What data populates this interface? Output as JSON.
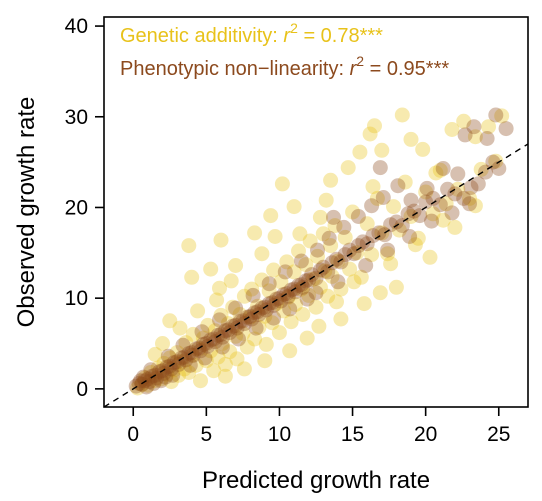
{
  "chart_data": {
    "type": "scatter",
    "xlabel": "Predicted growth rate",
    "ylabel": "Observed growth rate",
    "xlim": [
      -2,
      27
    ],
    "ylim": [
      -2,
      41
    ],
    "xticks": [
      0,
      5,
      10,
      15,
      20,
      25
    ],
    "yticks": [
      0,
      10,
      20,
      30,
      40
    ],
    "box": true,
    "reference_line": {
      "style": "dashed",
      "slope": 1,
      "intercept": 0
    },
    "legend_position": "top-left",
    "series": [
      {
        "name": "Genetic additivity",
        "legend_prefix": "Genetic additivity: ",
        "legend_stat": "r",
        "legend_exp": "2",
        "legend_value": " = 0.78***",
        "color": "#E8C21A",
        "opacity": 0.35,
        "points": [
          [
            0.3,
            0.1
          ],
          [
            0.6,
            0.5
          ],
          [
            0.8,
            1.2
          ],
          [
            1.0,
            0.4
          ],
          [
            1.2,
            1.8
          ],
          [
            1.5,
            0.9
          ],
          [
            1.7,
            2.3
          ],
          [
            1.9,
            1.1
          ],
          [
            2.1,
            2.8
          ],
          [
            2.3,
            1.6
          ],
          [
            2.5,
            3.4
          ],
          [
            2.6,
            0.8
          ],
          [
            2.8,
            2.1
          ],
          [
            3.0,
            4.0
          ],
          [
            3.1,
            1.5
          ],
          [
            3.3,
            3.0
          ],
          [
            3.5,
            2.2
          ],
          [
            3.6,
            5.1
          ],
          [
            3.8,
            1.8
          ],
          [
            4.0,
            3.7
          ],
          [
            4.1,
            6.0
          ],
          [
            4.3,
            2.6
          ],
          [
            4.5,
            4.4
          ],
          [
            4.6,
            0.9
          ],
          [
            4.8,
            5.6
          ],
          [
            5.0,
            3.1
          ],
          [
            5.1,
            7.0
          ],
          [
            5.3,
            4.2
          ],
          [
            5.5,
            2.0
          ],
          [
            5.6,
            6.4
          ],
          [
            5.8,
            3.5
          ],
          [
            6.0,
            8.1
          ],
          [
            6.1,
            5.0
          ],
          [
            6.3,
            2.7
          ],
          [
            6.5,
            7.2
          ],
          [
            6.6,
            4.1
          ],
          [
            6.8,
            9.0
          ],
          [
            7.0,
            5.8
          ],
          [
            7.1,
            3.3
          ],
          [
            7.3,
            8.2
          ],
          [
            7.5,
            6.1
          ],
          [
            7.6,
            10.2
          ],
          [
            7.8,
            4.6
          ],
          [
            8.0,
            7.9
          ],
          [
            8.1,
            11.0
          ],
          [
            8.3,
            5.5
          ],
          [
            8.5,
            9.1
          ],
          [
            8.6,
            6.8
          ],
          [
            8.8,
            12.0
          ],
          [
            9.0,
            8.0
          ],
          [
            9.1,
            4.9
          ],
          [
            9.3,
            10.8
          ],
          [
            9.5,
            7.3
          ],
          [
            9.6,
            13.1
          ],
          [
            9.8,
            9.4
          ],
          [
            10.0,
            6.2
          ],
          [
            10.1,
            11.8
          ],
          [
            10.3,
            8.6
          ],
          [
            10.5,
            14.0
          ],
          [
            10.6,
            10.1
          ],
          [
            10.8,
            7.4
          ],
          [
            11.0,
            12.9
          ],
          [
            11.1,
            9.3
          ],
          [
            11.3,
            15.2
          ],
          [
            11.5,
            11.0
          ],
          [
            11.6,
            8.2
          ],
          [
            11.8,
            13.7
          ],
          [
            12.0,
            10.3
          ],
          [
            12.1,
            16.3
          ],
          [
            12.3,
            12.1
          ],
          [
            12.5,
            9.0
          ],
          [
            12.6,
            14.6
          ],
          [
            12.8,
            11.2
          ],
          [
            13.0,
            17.1
          ],
          [
            13.1,
            13.0
          ],
          [
            13.3,
            10.2
          ],
          [
            13.5,
            15.8
          ],
          [
            13.6,
            12.4
          ],
          [
            13.8,
            18.0
          ],
          [
            14.0,
            14.1
          ],
          [
            14.2,
            11.0
          ],
          [
            14.5,
            16.7
          ],
          [
            14.8,
            13.2
          ],
          [
            15.0,
            19.5
          ],
          [
            15.3,
            15.0
          ],
          [
            15.6,
            12.3
          ],
          [
            16.0,
            18.2
          ],
          [
            16.3,
            14.8
          ],
          [
            16.7,
            21.0
          ],
          [
            17.0,
            17.2
          ],
          [
            17.4,
            14.9
          ],
          [
            17.8,
            20.1
          ],
          [
            18.2,
            17.5
          ],
          [
            18.6,
            22.8
          ],
          [
            19.0,
            19.0
          ],
          [
            19.5,
            16.6
          ],
          [
            20.0,
            21.7
          ],
          [
            20.5,
            19.3
          ],
          [
            21.0,
            24.1
          ],
          [
            21.4,
            20.4
          ],
          [
            21.8,
            28.6
          ],
          [
            22.2,
            22.0
          ],
          [
            22.6,
            29.5
          ],
          [
            23.0,
            21.0
          ],
          [
            23.4,
            27.8
          ],
          [
            23.8,
            24.2
          ],
          [
            24.3,
            28.9
          ],
          [
            24.8,
            25.1
          ],
          [
            25.2,
            30.1
          ],
          [
            18.4,
            30.2
          ],
          [
            16.2,
            28.1
          ],
          [
            16.5,
            29.0
          ],
          [
            19.0,
            27.5
          ],
          [
            17.0,
            26.3
          ],
          [
            3.8,
            15.8
          ],
          [
            5.3,
            13.2
          ],
          [
            6.0,
            16.4
          ],
          [
            8.8,
            14.9
          ],
          [
            4.0,
            12.3
          ],
          [
            2.5,
            7.5
          ],
          [
            7.0,
            13.6
          ],
          [
            11.0,
            20.1
          ],
          [
            13.5,
            23.0
          ],
          [
            10.2,
            22.6
          ],
          [
            12.8,
            18.9
          ],
          [
            14.7,
            24.4
          ],
          [
            9.7,
            16.8
          ],
          [
            6.7,
            11.9
          ],
          [
            5.7,
            9.8
          ],
          [
            15.8,
            9.4
          ],
          [
            14.2,
            7.7
          ],
          [
            11.9,
            5.6
          ],
          [
            10.7,
            4.2
          ],
          [
            9.0,
            3.1
          ],
          [
            7.6,
            2.2
          ],
          [
            6.3,
            1.4
          ],
          [
            18.0,
            11.2
          ],
          [
            20.3,
            14.5
          ],
          [
            22.0,
            17.8
          ],
          [
            16.9,
            10.6
          ],
          [
            2.0,
            5.0
          ],
          [
            1.5,
            3.8
          ],
          [
            3.2,
            6.7
          ],
          [
            4.4,
            8.6
          ],
          [
            5.9,
            11.1
          ],
          [
            12.7,
            6.9
          ],
          [
            13.9,
            9.6
          ],
          [
            15.1,
            11.8
          ],
          [
            17.6,
            13.8
          ],
          [
            19.3,
            15.9
          ],
          [
            21.2,
            18.6
          ],
          [
            23.4,
            20.2
          ],
          [
            8.3,
            17.2
          ],
          [
            9.4,
            19.1
          ],
          [
            15.5,
            26.1
          ],
          [
            13.2,
            20.8
          ],
          [
            11.4,
            17.1
          ],
          [
            16.4,
            22.3
          ],
          [
            19.8,
            26.4
          ],
          [
            20.7,
            23.8
          ]
        ]
      },
      {
        "name": "Phenotypic non-linearity",
        "legend_prefix": "Phenotypic non−linearity: ",
        "legend_stat": "r",
        "legend_exp": "2",
        "legend_value": " = 0.95***",
        "color": "#8C4A1E",
        "opacity": 0.35,
        "points": [
          [
            0.2,
            0.3
          ],
          [
            0.4,
            0.6
          ],
          [
            0.6,
            0.5
          ],
          [
            0.8,
            0.9
          ],
          [
            1.0,
            1.1
          ],
          [
            1.1,
            0.8
          ],
          [
            1.3,
            1.4
          ],
          [
            1.5,
            1.5
          ],
          [
            1.6,
            1.2
          ],
          [
            1.8,
            1.9
          ],
          [
            2.0,
            2.0
          ],
          [
            2.1,
            1.7
          ],
          [
            2.3,
            2.4
          ],
          [
            2.5,
            2.5
          ],
          [
            2.6,
            2.2
          ],
          [
            2.8,
            2.9
          ],
          [
            3.0,
            3.0
          ],
          [
            3.1,
            2.7
          ],
          [
            3.3,
            3.4
          ],
          [
            3.5,
            3.5
          ],
          [
            3.6,
            3.2
          ],
          [
            3.8,
            3.9
          ],
          [
            4.0,
            4.0
          ],
          [
            4.1,
            3.7
          ],
          [
            4.3,
            4.4
          ],
          [
            4.5,
            4.5
          ],
          [
            4.6,
            4.2
          ],
          [
            4.8,
            4.9
          ],
          [
            5.0,
            5.0
          ],
          [
            5.1,
            4.7
          ],
          [
            5.3,
            5.4
          ],
          [
            5.5,
            5.5
          ],
          [
            5.6,
            5.2
          ],
          [
            5.8,
            5.9
          ],
          [
            6.0,
            6.0
          ],
          [
            6.1,
            5.7
          ],
          [
            6.3,
            6.4
          ],
          [
            6.5,
            6.5
          ],
          [
            6.6,
            6.2
          ],
          [
            6.8,
            6.9
          ],
          [
            7.0,
            7.0
          ],
          [
            7.1,
            6.7
          ],
          [
            7.3,
            7.4
          ],
          [
            7.5,
            7.5
          ],
          [
            7.6,
            7.2
          ],
          [
            7.8,
            7.9
          ],
          [
            8.0,
            8.0
          ],
          [
            8.1,
            7.7
          ],
          [
            8.3,
            8.4
          ],
          [
            8.5,
            8.5
          ],
          [
            8.6,
            8.2
          ],
          [
            8.8,
            8.9
          ],
          [
            9.0,
            9.0
          ],
          [
            9.1,
            8.7
          ],
          [
            9.3,
            9.4
          ],
          [
            9.5,
            9.5
          ],
          [
            9.6,
            9.2
          ],
          [
            9.8,
            9.9
          ],
          [
            10.0,
            10.0
          ],
          [
            10.1,
            9.7
          ],
          [
            10.3,
            10.4
          ],
          [
            10.5,
            10.5
          ],
          [
            10.6,
            10.2
          ],
          [
            10.8,
            10.9
          ],
          [
            11.0,
            11.0
          ],
          [
            11.1,
            10.7
          ],
          [
            11.3,
            11.4
          ],
          [
            11.5,
            11.5
          ],
          [
            11.6,
            11.2
          ],
          [
            11.8,
            11.9
          ],
          [
            12.0,
            12.0
          ],
          [
            12.2,
            12.6
          ],
          [
            12.5,
            12.2
          ],
          [
            12.8,
            13.1
          ],
          [
            13.0,
            13.4
          ],
          [
            13.3,
            12.9
          ],
          [
            13.6,
            13.9
          ],
          [
            13.9,
            14.3
          ],
          [
            14.2,
            14.0
          ],
          [
            14.5,
            14.8
          ],
          [
            14.8,
            15.3
          ],
          [
            15.1,
            14.9
          ],
          [
            15.4,
            15.8
          ],
          [
            15.7,
            16.2
          ],
          [
            16.0,
            16.0
          ],
          [
            16.4,
            16.9
          ],
          [
            16.8,
            17.2
          ],
          [
            17.2,
            17.0
          ],
          [
            17.6,
            18.1
          ],
          [
            18.0,
            18.4
          ],
          [
            18.4,
            18.0
          ],
          [
            18.8,
            19.3
          ],
          [
            19.2,
            19.6
          ],
          [
            19.6,
            19.1
          ],
          [
            20.0,
            20.6
          ],
          [
            20.5,
            21.0
          ],
          [
            21.0,
            20.3
          ],
          [
            21.5,
            22.0
          ],
          [
            22.0,
            21.5
          ],
          [
            22.6,
            21.0
          ],
          [
            23.1,
            22.2
          ],
          [
            23.6,
            22.6
          ],
          [
            24.1,
            23.9
          ],
          [
            24.6,
            25.0
          ],
          [
            25.0,
            24.3
          ],
          [
            25.5,
            28.7
          ],
          [
            24.8,
            30.2
          ],
          [
            23.3,
            28.9
          ],
          [
            22.7,
            28.0
          ],
          [
            24.2,
            27.6
          ],
          [
            1.9,
            0.9
          ],
          [
            2.7,
            1.5
          ],
          [
            3.9,
            2.6
          ],
          [
            4.9,
            3.4
          ],
          [
            6.1,
            4.6
          ],
          [
            7.2,
            5.5
          ],
          [
            8.4,
            6.7
          ],
          [
            9.6,
            7.8
          ],
          [
            10.7,
            8.8
          ],
          [
            11.9,
            9.9
          ],
          [
            2.4,
            3.6
          ],
          [
            3.4,
            4.8
          ],
          [
            4.7,
            6.3
          ],
          [
            5.9,
            7.6
          ],
          [
            7.0,
            8.9
          ],
          [
            8.2,
            10.3
          ],
          [
            9.3,
            11.6
          ],
          [
            10.4,
            12.9
          ],
          [
            11.5,
            14.1
          ],
          [
            12.6,
            15.3
          ],
          [
            13.4,
            16.6
          ],
          [
            14.4,
            17.8
          ],
          [
            15.4,
            19.0
          ],
          [
            16.3,
            20.2
          ],
          [
            17.1,
            21.1
          ],
          [
            18.1,
            22.4
          ],
          [
            19.0,
            20.8
          ],
          [
            20.1,
            22.1
          ],
          [
            21.2,
            24.3
          ],
          [
            22.2,
            23.7
          ],
          [
            15.9,
            13.6
          ],
          [
            17.4,
            15.3
          ],
          [
            18.9,
            16.8
          ],
          [
            20.4,
            18.5
          ],
          [
            21.8,
            19.4
          ],
          [
            23.0,
            20.4
          ],
          [
            14.0,
            11.8
          ],
          [
            12.5,
            10.6
          ],
          [
            13.7,
            18.9
          ],
          [
            16.9,
            24.4
          ],
          [
            0.9,
            0.2
          ],
          [
            0.5,
            0.9
          ],
          [
            1.4,
            0.6
          ],
          [
            0.7,
            1.3
          ],
          [
            2.2,
            1.3
          ],
          [
            1.2,
            2.1
          ]
        ]
      }
    ]
  }
}
